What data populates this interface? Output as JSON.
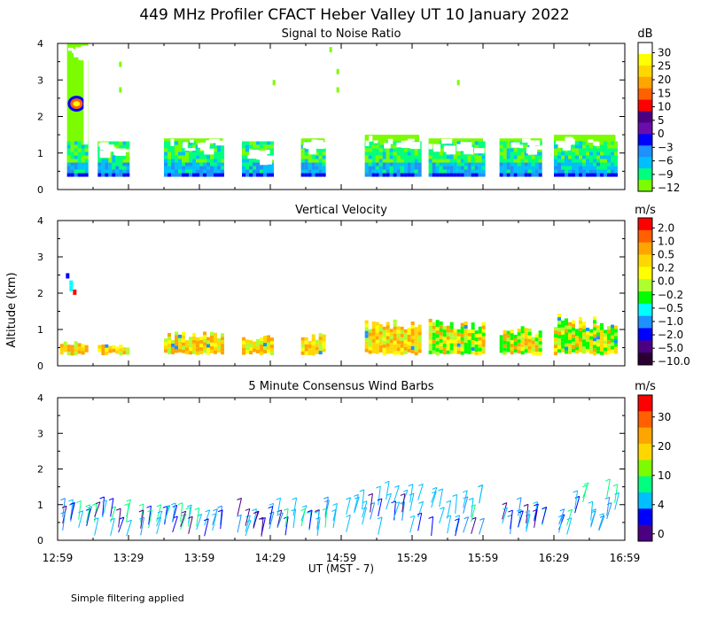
{
  "figure": {
    "title": "449 MHz Profiler CFACT Heber Valley UT 10 January 2022",
    "ylabel": "Altitude (km)",
    "xlabel": "UT  (MST - 7)",
    "footnote": "Simple filtering applied",
    "x_ticks": [
      "12:59",
      "13:29",
      "13:59",
      "14:29",
      "14:59",
      "15:29",
      "15:59",
      "16:29",
      "16:59"
    ],
    "y_ticks": [
      "0",
      "1",
      "2",
      "3",
      "4"
    ]
  },
  "chart_data": [
    {
      "type": "heatmap",
      "title": "Signal to Noise Ratio",
      "colorbar": {
        "unit": "dB",
        "labels": [
          "30",
          "25",
          "20",
          "15",
          "10",
          "5",
          "0",
          "−3",
          "−6",
          "−9",
          "−12"
        ],
        "colors": [
          "#ffffff",
          "#ffff00",
          "#ffd700",
          "#ffa500",
          "#ff6000",
          "#ff0000",
          "#4b0082",
          "#6a0dad",
          "#0000ff",
          "#1e90ff",
          "#00bfff",
          "#00ff7f",
          "#7cfc00"
        ]
      },
      "xlim": [
        "12:59",
        "16:59"
      ],
      "ylim": [
        0,
        4
      ],
      "data_blocks": [
        {
          "start": "13:03",
          "end": "13:12",
          "alt_top_km": 4.0,
          "background": "#7cfc00"
        },
        {
          "start": "13:16",
          "end": "13:29",
          "alt_top_km": 1.3,
          "background": "#7cfc00"
        },
        {
          "start": "13:44",
          "end": "14:09",
          "alt_top_km": 1.4,
          "background": "#7cfc00"
        },
        {
          "start": "14:17",
          "end": "14:30",
          "alt_top_km": 1.1,
          "background": "#7cfc00"
        },
        {
          "start": "14:42",
          "end": "14:52",
          "alt_top_km": 1.4,
          "background": "#7cfc00"
        },
        {
          "start": "15:09",
          "end": "15:32",
          "alt_top_km": 1.5,
          "background": "#7cfc00"
        },
        {
          "start": "15:36",
          "end": "15:59",
          "alt_top_km": 1.4,
          "background": "#7cfc00"
        },
        {
          "start": "16:06",
          "end": "16:24",
          "alt_top_km": 1.4,
          "background": "#7cfc00"
        },
        {
          "start": "16:29",
          "end": "16:55",
          "alt_top_km": 1.5,
          "background": "#7cfc00"
        }
      ]
    },
    {
      "type": "heatmap",
      "title": "Vertical Velocity",
      "colorbar": {
        "unit": "m/s",
        "labels": [
          "2.0",
          "1.0",
          "0.5",
          "0.2",
          "0.0",
          "−0.2",
          "−0.5",
          "−1.0",
          "−2.0",
          "−5.0",
          "−10.0"
        ],
        "colors": [
          "#ff0000",
          "#ff6000",
          "#ffa500",
          "#ffd700",
          "#ffff00",
          "#adff2f",
          "#00ff00",
          "#00ffff",
          "#1e90ff",
          "#0000ff",
          "#4b0082",
          "#2a0033"
        ]
      },
      "xlim": [
        "12:59",
        "16:59"
      ],
      "ylim": [
        0,
        4
      ]
    },
    {
      "type": "scatter",
      "title": "5 Minute Consensus Wind Barbs",
      "colorbar": {
        "unit": "m/s",
        "labels": [
          "30",
          "20",
          "10",
          "4",
          "0"
        ],
        "colors": [
          "#ff0000",
          "#ff6000",
          "#ffa500",
          "#ffd700",
          "#7cfc00",
          "#00ff7f",
          "#00bfff",
          "#0000ff",
          "#4b0082"
        ]
      },
      "xlim": [
        "12:59",
        "16:59"
      ],
      "ylim": [
        0,
        4
      ]
    }
  ]
}
